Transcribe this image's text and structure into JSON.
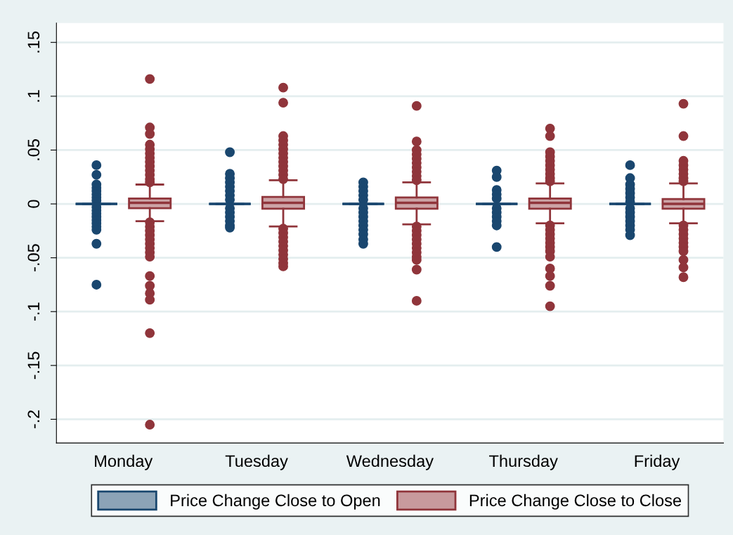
{
  "chart_data": {
    "type": "box",
    "categories": [
      "Monday",
      "Tuesday",
      "Wednesday",
      "Thursday",
      "Friday"
    ],
    "ylim": [
      -0.222,
      0.168
    ],
    "yticks": [
      {
        "value": -0.2,
        "label": "-.2"
      },
      {
        "value": -0.15,
        "label": "-.15"
      },
      {
        "value": -0.1,
        "label": "-.1"
      },
      {
        "value": -0.05,
        "label": "-.05"
      },
      {
        "value": 0,
        "label": "0"
      },
      {
        "value": 0.05,
        "label": ".05"
      },
      {
        "value": 0.1,
        "label": ".1"
      },
      {
        "value": 0.15,
        "label": ".15"
      }
    ],
    "grid": "y",
    "legend": "bottom",
    "marker": "circle",
    "series": [
      {
        "name": "Price Change Close to Open",
        "color": "#1a476f",
        "boxes": [
          {
            "low": 0,
            "q1": 0,
            "median": 0,
            "q3": 0,
            "high": 0,
            "outliers": [
              0.036,
              0.027,
              0.018,
              0.015,
              0.012,
              0.009,
              0.006,
              0.003,
              -0.003,
              -0.006,
              -0.009,
              -0.012,
              -0.015,
              -0.018,
              -0.021,
              -0.024,
              -0.037,
              -0.075
            ]
          },
          {
            "low": 0,
            "q1": 0,
            "median": 0,
            "q3": 0,
            "high": 0,
            "outliers": [
              0.048,
              0.028,
              0.024,
              0.02,
              0.016,
              0.012,
              0.008,
              0.004,
              -0.004,
              -0.008,
              -0.012,
              -0.016,
              -0.02,
              -0.022
            ]
          },
          {
            "low": 0,
            "q1": 0,
            "median": 0,
            "q3": 0,
            "high": 0,
            "outliers": [
              0.02,
              0.016,
              0.012,
              0.008,
              0.004,
              -0.004,
              -0.008,
              -0.012,
              -0.016,
              -0.02,
              -0.024,
              -0.028,
              -0.033,
              -0.037
            ]
          },
          {
            "low": 0,
            "q1": 0,
            "median": 0,
            "q3": 0,
            "high": 0,
            "outliers": [
              0.031,
              0.025,
              0.013,
              0.009,
              0.005,
              -0.004,
              -0.008,
              -0.012,
              -0.016,
              -0.02,
              -0.04
            ]
          },
          {
            "low": 0,
            "q1": 0,
            "median": 0,
            "q3": 0,
            "high": 0,
            "outliers": [
              0.036,
              0.024,
              0.018,
              0.014,
              0.01,
              0.006,
              0.002,
              -0.004,
              -0.008,
              -0.012,
              -0.016,
              -0.02,
              -0.024,
              -0.029
            ]
          }
        ]
      },
      {
        "name": "Price Change Close to Close",
        "color": "#90353b",
        "boxes": [
          {
            "low": -0.016,
            "q1": -0.004,
            "median": 0.001,
            "q3": 0.005,
            "high": 0.018,
            "outliers": [
              0.116,
              0.071,
              0.065,
              0.055,
              0.051,
              0.047,
              0.043,
              0.039,
              0.035,
              0.031,
              0.027,
              0.023,
              0.02,
              -0.017,
              -0.021,
              -0.025,
              -0.029,
              -0.033,
              -0.037,
              -0.041,
              -0.045,
              -0.049,
              -0.067,
              -0.076,
              -0.083,
              -0.089,
              -0.12,
              -0.205
            ]
          },
          {
            "low": -0.021,
            "q1": -0.0045,
            "median": 0.001,
            "q3": 0.0065,
            "high": 0.022,
            "outliers": [
              0.108,
              0.094,
              0.063,
              0.059,
              0.055,
              0.051,
              0.047,
              0.043,
              0.039,
              0.035,
              0.031,
              0.027,
              0.023,
              -0.023,
              -0.027,
              -0.031,
              -0.035,
              -0.039,
              -0.043,
              -0.047,
              -0.051,
              -0.055,
              -0.058
            ]
          },
          {
            "low": -0.019,
            "q1": -0.0045,
            "median": 0.001,
            "q3": 0.006,
            "high": 0.02,
            "outliers": [
              0.091,
              0.058,
              0.05,
              0.046,
              0.042,
              0.038,
              0.034,
              0.03,
              0.026,
              0.022,
              -0.021,
              -0.025,
              -0.029,
              -0.033,
              -0.037,
              -0.041,
              -0.045,
              -0.049,
              -0.052,
              -0.061,
              -0.09
            ]
          },
          {
            "low": -0.018,
            "q1": -0.0045,
            "median": 0.001,
            "q3": 0.005,
            "high": 0.019,
            "outliers": [
              0.07,
              0.063,
              0.048,
              0.044,
              0.04,
              0.036,
              0.032,
              0.028,
              0.024,
              0.021,
              -0.02,
              -0.024,
              -0.028,
              -0.032,
              -0.036,
              -0.04,
              -0.044,
              -0.049,
              -0.06,
              -0.067,
              -0.076,
              -0.095
            ]
          },
          {
            "low": -0.018,
            "q1": -0.0045,
            "median": 0.0,
            "q3": 0.0045,
            "high": 0.019,
            "outliers": [
              0.093,
              0.063,
              0.04,
              0.036,
              0.032,
              0.028,
              0.024,
              0.021,
              -0.02,
              -0.024,
              -0.028,
              -0.032,
              -0.036,
              -0.04,
              -0.044,
              -0.052,
              -0.059,
              -0.068
            ]
          }
        ]
      }
    ]
  }
}
